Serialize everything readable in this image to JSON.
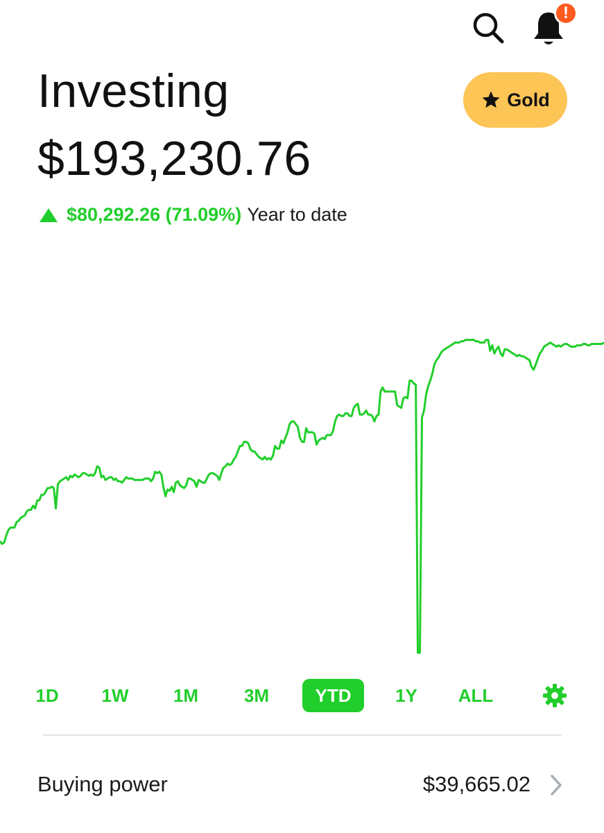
{
  "header": {
    "search_icon": "search-icon",
    "bell_icon": "bell-icon",
    "notification_badge": "!"
  },
  "page": {
    "title": "Investing",
    "portfolio_value": "$193,230.76"
  },
  "gold": {
    "label": "Gold",
    "icon": "star-icon",
    "color": "#fdc456"
  },
  "change": {
    "direction_icon": "triangle-up-icon",
    "amount": "$80,292.26 (71.09%)",
    "period": "Year to date"
  },
  "colors": {
    "accent_green": "#21ce2b",
    "badge_orange": "#ff5a1f"
  },
  "chart_data": {
    "type": "line",
    "range": "YTD",
    "series": [
      {
        "color": "#21ce2b",
        "values": [
          0.12,
          0.1,
          0.11,
          0.16,
          0.2,
          0.22,
          0.22,
          0.22,
          0.26,
          0.27,
          0.29,
          0.3,
          0.31,
          0.34,
          0.35,
          0.35,
          0.38,
          0.36,
          0.42,
          0.42,
          0.46,
          0.46,
          0.48,
          0.51,
          0.51,
          0.52,
          0.51,
          0.36,
          0.54,
          0.56,
          0.57,
          0.58,
          0.59,
          0.57,
          0.6,
          0.59,
          0.61,
          0.6,
          0.59,
          0.6,
          0.62,
          0.62,
          0.61,
          0.6,
          0.61,
          0.6,
          0.62,
          0.67,
          0.66,
          0.59,
          0.6,
          0.57,
          0.58,
          0.59,
          0.59,
          0.57,
          0.58,
          0.56,
          0.56,
          0.55,
          0.57,
          0.59,
          0.58,
          0.58,
          0.58,
          0.57,
          0.57,
          0.57,
          0.57,
          0.57,
          0.58,
          0.58,
          0.58,
          0.56,
          0.58,
          0.63,
          0.62,
          0.63,
          0.61,
          0.52,
          0.45,
          0.5,
          0.49,
          0.52,
          0.48,
          0.55,
          0.56,
          0.53,
          0.52,
          0.51,
          0.53,
          0.58,
          0.58,
          0.57,
          0.56,
          0.52,
          0.57,
          0.56,
          0.55,
          0.55,
          0.58,
          0.61,
          0.62,
          0.62,
          0.61,
          0.6,
          0.57,
          0.62,
          0.66,
          0.67,
          0.69,
          0.68,
          0.69,
          0.72,
          0.74,
          0.78,
          0.82,
          0.82,
          0.85,
          0.85,
          0.84,
          0.8,
          0.78,
          0.78,
          0.76,
          0.74,
          0.73,
          0.72,
          0.74,
          0.72,
          0.73,
          0.72,
          0.75,
          0.82,
          0.8,
          0.8,
          0.86,
          0.84,
          0.88,
          0.92,
          0.98,
          1.0,
          1.0,
          0.98,
          0.96,
          0.88,
          0.85,
          0.85,
          0.95,
          0.92,
          0.92,
          0.92,
          0.91,
          0.83,
          0.86,
          0.87,
          0.88,
          0.87,
          0.9,
          0.9,
          0.9,
          0.93,
          1.0,
          1.04,
          1.05,
          1.04,
          1.04,
          1.06,
          1.06,
          1.04,
          1.04,
          1.1,
          1.12,
          1.13,
          1.05,
          1.05,
          1.06,
          1.08,
          1.05,
          1.05,
          1.04,
          1.0,
          1.04,
          1.05,
          1.22,
          1.25,
          1.22,
          1.22,
          1.22,
          1.22,
          1.22,
          1.22,
          1.12,
          1.11,
          1.1,
          1.17,
          1.18,
          1.17,
          1.3,
          1.3,
          1.28,
          1.27,
          -0.7,
          -0.7,
          1.03,
          1.08,
          1.2,
          1.26,
          1.3,
          1.35,
          1.42,
          1.45,
          1.47,
          1.5,
          1.52,
          1.53,
          1.54,
          1.55,
          1.56,
          1.57,
          1.58,
          1.58,
          1.58,
          1.59,
          1.59,
          1.6,
          1.6,
          1.6,
          1.6,
          1.6,
          1.59,
          1.59,
          1.58,
          1.58,
          1.58,
          1.6,
          1.6,
          1.52,
          1.56,
          1.5,
          1.53,
          1.55,
          1.5,
          1.48,
          1.53,
          1.53,
          1.52,
          1.51,
          1.5,
          1.49,
          1.48,
          1.49,
          1.48,
          1.48,
          1.47,
          1.46,
          1.45,
          1.4,
          1.38,
          1.42,
          1.46,
          1.5,
          1.52,
          1.55,
          1.56,
          1.57,
          1.58,
          1.57,
          1.56,
          1.55,
          1.56,
          1.55,
          1.56,
          1.57,
          1.57,
          1.56,
          1.55,
          1.55,
          1.55,
          1.56,
          1.56,
          1.56,
          1.57,
          1.57,
          1.56,
          1.56,
          1.57,
          1.57,
          1.57,
          1.57,
          1.57,
          1.57,
          1.58
        ]
      }
    ]
  },
  "range_tabs": [
    {
      "label": "1D",
      "active": false
    },
    {
      "label": "1W",
      "active": false
    },
    {
      "label": "1M",
      "active": false
    },
    {
      "label": "3M",
      "active": false
    },
    {
      "label": "YTD",
      "active": true
    },
    {
      "label": "1Y",
      "active": false
    },
    {
      "label": "ALL",
      "active": false
    }
  ],
  "settings_icon": "gear-icon",
  "buying_power": {
    "label": "Buying power",
    "value": "$39,665.02",
    "chevron_icon": "chevron-right-icon"
  }
}
